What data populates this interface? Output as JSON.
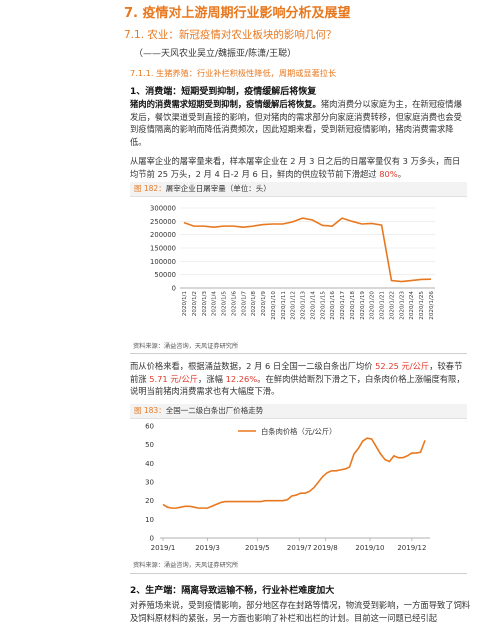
{
  "heading": "7. 疫情对上游周期行业影响分析及展望",
  "subheading": "7.1. 农业：新冠疫情对农业板块的影响几何？",
  "author": "（——天风农业吴立/魏振亚/陈潇/王聪）",
  "subsubheading": "7.1.1. 生猪养殖：行业补栏积极性降低，周期或显著拉长",
  "section1": "1、消费端：短期受到抑制，疫情缓解后将恢复",
  "para1": {
    "lead": "猪肉的消费需求短期受到抑制，疫情缓解后将恢复。",
    "rest": "猪肉消费分以家庭为主，在新冠疫情爆发后，餐饮渠道受到直接的影响，但对猪肉的需求部分向家庭消费转移，但家庭消费也会受到疫情隔离的影响而降低消费频次，因此短期来看，受到新冠疫情影响，猪肉消费需求降低。"
  },
  "para2": {
    "text": "从屠宰企业的屠宰量来看，样本屠宰企业在 2 月 3 日之后的日屠宰量仅有 3 万多头，而日均节前 25 万头，2 月 4 日-2 月 6 日，鲜肉的供应较节前下滑超过 ",
    "highlight": "80%",
    "end": "。"
  },
  "figure182": {
    "label": "图 182：",
    "title": "屠宰企业日屠宰量（单位：头）",
    "source": "资料来源：涌益咨询，天风证券研究所"
  },
  "chart182": {
    "type": "line",
    "color": "#e8781f",
    "y_ticks": [
      "300000",
      "250000",
      "200000",
      "150000",
      "100000",
      "50000",
      "0"
    ],
    "x_ticks": [
      "2020/1/1",
      "2020/1/2",
      "2020/1/3",
      "2020/1/4",
      "2020/1/5",
      "2020/1/6",
      "2020/1/7",
      "2020/1/8",
      "2020/1/9",
      "2020/1/10",
      "2020/1/11",
      "2020/1/12",
      "2020/1/13",
      "2020/1/14",
      "2020/1/15",
      "2020/1/16",
      "2020/1/17",
      "2020/1/18",
      "2020/1/19",
      "2020/1/20",
      "2020/1/21",
      "2020/1/22",
      "2020/1/23",
      "2020/1/24",
      "2020/1/25",
      "2020/1/26"
    ],
    "x_tick_labels": [
      "2020/1/1",
      "2020/1/2",
      "2020/1/3",
      "2020/1/4",
      "2020/1/5",
      "2020/1/6",
      "2020/1/7",
      "2020/1/8",
      "2020/1/9",
      "2020/1/10",
      "2020/1/11",
      "2020/1/12",
      "2020/1/13",
      "2020/1/14",
      "2020/1/15",
      "2020/1/16",
      "2020/1/17",
      "2020/1/18",
      "2020/1/19",
      "2020/1/20",
      "2020/1/21",
      "2020/1/22",
      "2020/1/23",
      "2020/1/24",
      "2020/1/25",
      "2020/1/26"
    ],
    "ylim": [
      0,
      300000
    ],
    "values": [
      245000,
      232000,
      232000,
      228000,
      232000,
      232000,
      228000,
      232000,
      238000,
      240000,
      240000,
      248000,
      262000,
      255000,
      235000,
      232000,
      262000,
      250000,
      240000,
      242000,
      236000,
      28000,
      24000,
      28000,
      32000,
      33000
    ]
  },
  "para3": {
    "a": "而从价格来看，根据涌益数据，2 月 6 日全国一二级白条出厂均价 ",
    "b": "52.25 元/公斤",
    "c": "，较春节前涨 ",
    "d": "5.71 元/公斤",
    "e": "，涨幅 ",
    "f": "12.26%",
    "g": "。在鲜肉供给断烈下滑之下，白条肉价格上涨幅度有限，说明当前猪肉消费需求也有大幅度下滑。"
  },
  "figure183": {
    "label": "图 183：",
    "title": "全国一二级白条出厂价格走势",
    "source": "资料来源：涌益咨询，天风证券研究所"
  },
  "chart183": {
    "type": "line",
    "color": "#e8781f",
    "legend": "白条肉价格（元/公斤）",
    "ylim": [
      0,
      60
    ],
    "y_ticks": [
      "60",
      "50",
      "40",
      "30",
      "20",
      "10",
      "0"
    ],
    "x_tick_labels": [
      "2019/1",
      "2019/3",
      "2019/5",
      "2019/7",
      "2019/8",
      "2019/10",
      "2019/12"
    ],
    "values": [
      18,
      16.5,
      16,
      16,
      16.5,
      17,
      17,
      16.5,
      16,
      16,
      16,
      17,
      18,
      19,
      19.5,
      19.5,
      19.5,
      19.5,
      19.5,
      19.5,
      19.5,
      19.5,
      19.5,
      20,
      20,
      20,
      20,
      20,
      20.5,
      22.5,
      23,
      24,
      24,
      25,
      27,
      30,
      33,
      35,
      36,
      36,
      36.5,
      37,
      38,
      45,
      48,
      52,
      53.5,
      53,
      49,
      45,
      42,
      41,
      44,
      43,
      43,
      44,
      45.5,
      45.5,
      46,
      52.3
    ]
  },
  "section2": "2、生产端：隔离导致运输不畅，行业补栏难度加大",
  "para4": "对养殖场来说，受到疫情影响，部分地区存在封路等情况，物流受到影响，一方面导致了饲料及饲料原材料的紧张，另一方面也影响了补栏和出栏的计划。目前这一问题已经引起"
}
